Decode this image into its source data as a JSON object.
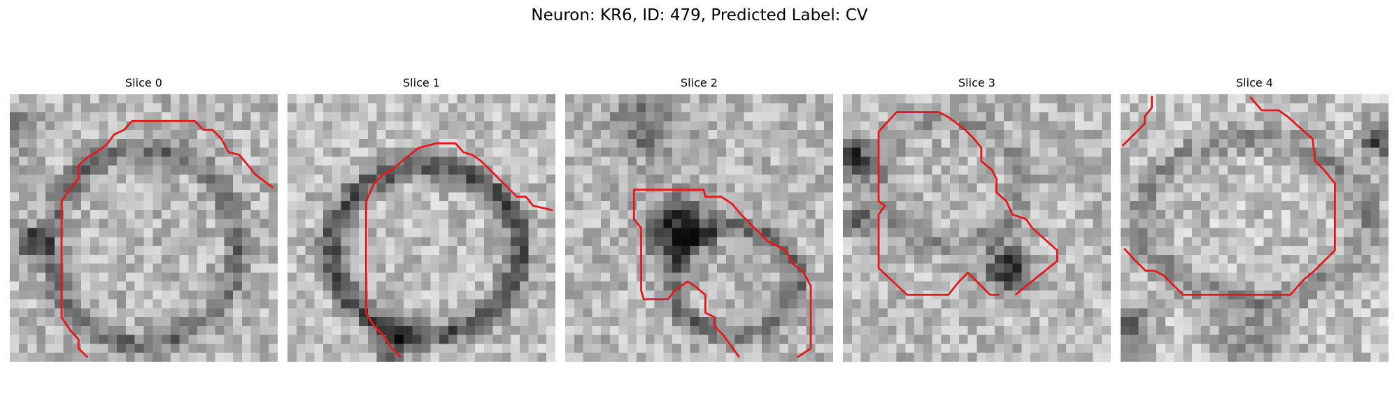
{
  "figure": {
    "title": "Neuron: KR6, ID: 479, Predicted Label: CV",
    "contour_color": "#e31a1c",
    "colormap": "grayscale"
  },
  "slices": [
    {
      "title": "Slice 0"
    },
    {
      "title": "Slice 1"
    },
    {
      "title": "Slice 2"
    },
    {
      "title": "Slice 3"
    },
    {
      "title": "Slice 4"
    }
  ]
}
